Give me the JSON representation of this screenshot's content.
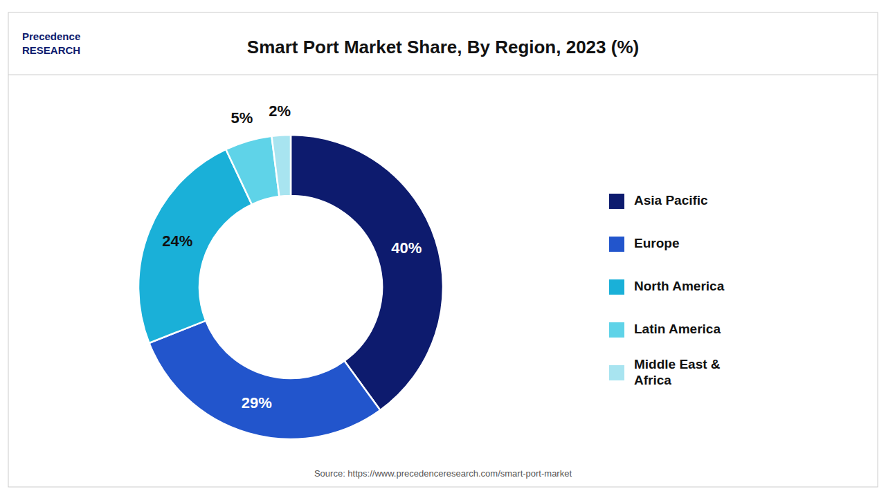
{
  "chart_data": {
    "type": "pie",
    "title": "Smart Port Market Share, By Region, 2023 (%)",
    "categories": [
      "Asia Pacific",
      "Europe",
      "North America",
      "Latin America",
      "Middle East &\nAfrica"
    ],
    "values": [
      40,
      29,
      24,
      5,
      2
    ],
    "value_labels": [
      "40%",
      "29%",
      "24%",
      "5%",
      "2%"
    ],
    "colors": [
      "#0d1b6e",
      "#2255cc",
      "#1ab0d8",
      "#5fd3e8",
      "#a8e4f0"
    ],
    "data_labels": true,
    "legend": "right",
    "annotations": [
      "Precedence\nRESEARCH",
      "Source: https://www.precedenceresearch.com/smart-port-market"
    ]
  }
}
